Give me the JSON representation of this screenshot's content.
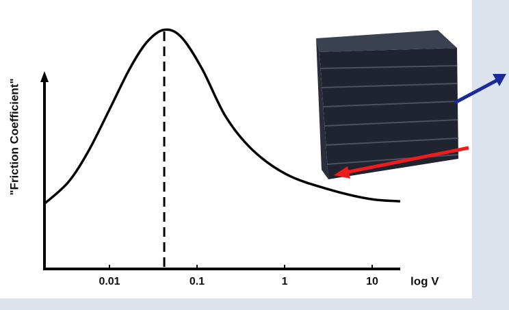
{
  "chart_data": {
    "type": "line",
    "y_label": "\"Friction Coefficient\"",
    "x_label": "log V",
    "log_x": true,
    "xlim": [
      0.00181,
      20.9
    ],
    "xticks": [
      0.01,
      0.1,
      1,
      10
    ],
    "ylim": [
      0,
      1
    ],
    "peak_x": 0.0422,
    "series": [
      {
        "color": "#000000",
        "x": [
          0.00181,
          0.0034,
          0.0058,
          0.01,
          0.0171,
          0.0269,
          0.0422,
          0.066,
          0.1135,
          0.213,
          0.4375,
          1.07,
          3.16,
          9.3,
          20.9
        ],
        "values": [
          0.27,
          0.36,
          0.49,
          0.66,
          0.83,
          0.94,
          0.99,
          0.96,
          0.83,
          0.63,
          0.49,
          0.39,
          0.33,
          0.29,
          0.28
        ]
      }
    ]
  }
}
